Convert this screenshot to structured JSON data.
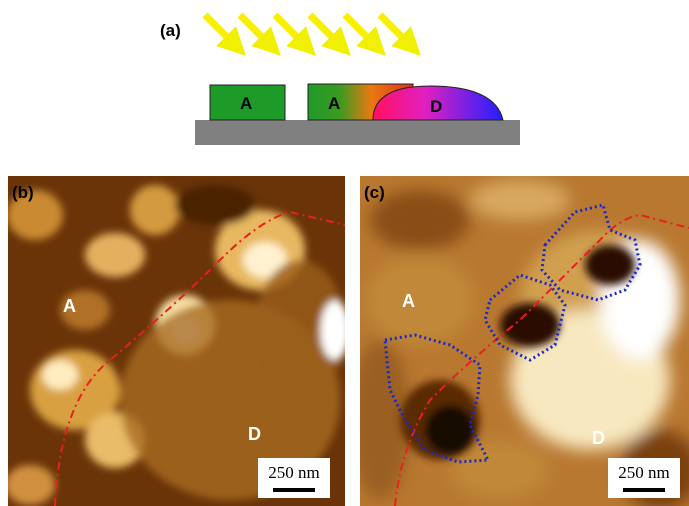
{
  "panel_a": {
    "label": "(a)",
    "block_1": "A",
    "block_2": "A",
    "droplet": "D"
  },
  "panel_b": {
    "label": "(b)",
    "region_a": "A",
    "region_d": "D",
    "scale_bar": "250 nm"
  },
  "panel_c": {
    "label": "(c)",
    "region_a": "A",
    "region_d": "D",
    "scale_bar": "250 nm"
  }
}
